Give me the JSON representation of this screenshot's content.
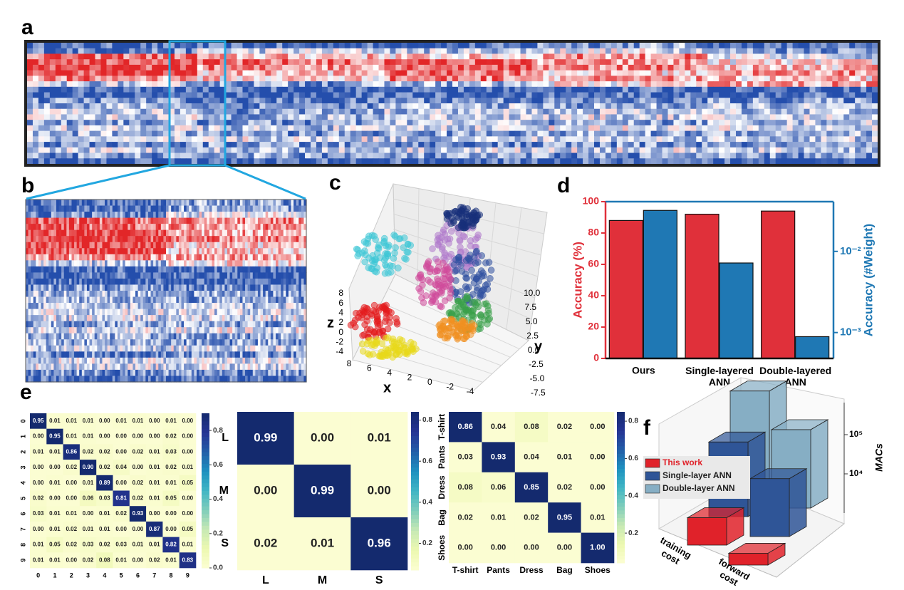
{
  "chart_data": [
    {
      "type": "raster",
      "label": "a"
    },
    {
      "type": "raster",
      "label": "b"
    },
    {
      "type": "scatter3d",
      "label": "c",
      "xlabel": "x",
      "ylabel": "y",
      "zlabel": "z",
      "xlim": [
        -4,
        8
      ],
      "xticks": [
        -4,
        -2,
        0,
        2,
        4,
        6,
        8
      ],
      "ylim": [
        -7.5,
        10
      ],
      "yticks": [
        -7.5,
        {
          "value": -5,
          "label": "-5.0"
        },
        -2.5,
        {
          "value": 0,
          "label": "0.0"
        },
        2.5,
        {
          "value": 5,
          "label": "5.0"
        },
        7.5,
        {
          "value": 10,
          "label": "10.0"
        }
      ],
      "zlim": [
        -4,
        8
      ],
      "zticks": [
        -4,
        -2,
        0,
        2,
        4,
        6,
        8
      ]
    },
    {
      "type": "bar",
      "label": "d",
      "categories": [
        "Ours",
        "Single-layered ANN",
        "Double-layered ANN"
      ],
      "series": [
        {
          "color": "#e0303a",
          "values": [
            88,
            92,
            94
          ]
        },
        {
          "color": "#1f78b4",
          "axis": "y2",
          "values": [
            0.032,
            0.0072,
            0.00089
          ]
        }
      ],
      "ylabel": "Accuracy (%)",
      "y2label": "Accuracy  (#Weight)",
      "ylim": [
        0,
        100
      ],
      "yticks": [
        0,
        20,
        40,
        60,
        80,
        100
      ],
      "y2log": true,
      "y2lim": [
        0.00048,
        0.041
      ],
      "y2ticks": [
        {
          "value": 0.001,
          "label": "10⁻³"
        },
        {
          "value": 0.01,
          "label": "10⁻²"
        }
      ]
    },
    {
      "type": "heatmap",
      "label": "e",
      "categories": [
        "0",
        "1",
        "2",
        "3",
        "4",
        "5",
        "6",
        "7",
        "8",
        "9"
      ],
      "values": [
        [
          0.95,
          0.01,
          0.01,
          0.01,
          0,
          0.01,
          0.01,
          0,
          0.01,
          0
        ],
        [
          0,
          0.95,
          0.01,
          0.01,
          0,
          0,
          0,
          0,
          0.02,
          0
        ],
        [
          0.01,
          0.01,
          0.86,
          0.02,
          0.02,
          0,
          0.02,
          0.01,
          0.03,
          0
        ],
        [
          0,
          0,
          0.02,
          0.9,
          0.02,
          0.04,
          0,
          0.01,
          0.02,
          0.01
        ],
        [
          0,
          0.01,
          0,
          0.01,
          0.89,
          0,
          0.02,
          0.01,
          0.01,
          0.05
        ],
        [
          0.02,
          0,
          0,
          0.06,
          0.03,
          0.81,
          0.02,
          0.01,
          0.05,
          0
        ],
        [
          0.03,
          0.01,
          0.01,
          0,
          0.01,
          0.02,
          0.93,
          0,
          0,
          0
        ],
        [
          0,
          0.01,
          0.02,
          0.01,
          0.01,
          0,
          0,
          0.87,
          0,
          0.05
        ],
        [
          0.01,
          0.05,
          0.02,
          0.03,
          0.02,
          0.03,
          0.01,
          0.01,
          0.82,
          0.01
        ],
        [
          0.01,
          0.01,
          0,
          0.02,
          0.08,
          0.01,
          0,
          0.02,
          0.01,
          0.83
        ]
      ],
      "value_labels": [
        [
          "0.95",
          "0.01",
          "0.01",
          "0.01",
          "0.00",
          "0.01",
          "0.01",
          "0.00",
          "0.01",
          "0.00"
        ],
        [
          "0.00",
          "0.95",
          "0.01",
          "0.01",
          "0.00",
          "0.00",
          "0.00",
          "0.00",
          "0.02",
          "0.00"
        ],
        [
          "0.01",
          "0.01",
          "0.86",
          "0.02",
          "0.02",
          "0.00",
          "0.02",
          "0.01",
          "0.03",
          "0.00"
        ],
        [
          "0.00",
          "0.00",
          "0.02",
          "0.90",
          "0.02",
          "0.04",
          "0.00",
          "0.01",
          "0.02",
          "0.01"
        ],
        [
          "0.00",
          "0.01",
          "0.00",
          "0.01",
          "0.89",
          "0.00",
          "0.02",
          "0.01",
          "0.01",
          "0.05"
        ],
        [
          "0.02",
          "0.00",
          "0.00",
          "0.06",
          "0.03",
          "0.81",
          "0.02",
          "0.01",
          "0.05",
          "0.00"
        ],
        [
          "0.03",
          "0.01",
          "0.01",
          "0.00",
          "0.01",
          "0.02",
          "0.93",
          "0.00",
          "0.00",
          "0.00"
        ],
        [
          "0.00",
          "0.01",
          "0.02",
          "0.01",
          "0.01",
          "0.00",
          "0.00",
          "0.87",
          "0.00",
          "0.05"
        ],
        [
          "0.01",
          "0.05",
          "0.02",
          "0.03",
          "0.02",
          "0.03",
          "0.01",
          "0.01",
          "0.82",
          "0.01"
        ],
        [
          "0.01",
          "0.01",
          "0.00",
          "0.02",
          "0.08",
          "0.01",
          "0.00",
          "0.02",
          "0.01",
          "0.83"
        ]
      ],
      "zlim": [
        0,
        0.9
      ],
      "zticks": [
        {
          "value": 0,
          "label": "0.0"
        },
        0.2,
        0.4,
        0.6,
        0.8
      ]
    },
    {
      "type": "heatmap",
      "categories": [
        "L",
        "M",
        "S"
      ],
      "values": [
        [
          0.99,
          0,
          0.01
        ],
        [
          0,
          0.99,
          0
        ],
        [
          0.02,
          0.01,
          0.96
        ]
      ],
      "value_labels": [
        [
          "0.99",
          "0.00",
          "0.01"
        ],
        [
          "0.00",
          "0.99",
          "0.00"
        ],
        [
          "0.02",
          "0.01",
          "0.96"
        ]
      ],
      "zlim": [
        0.07,
        0.84
      ],
      "zticks": [
        0.2,
        0.4,
        0.6,
        0.8
      ]
    },
    {
      "type": "heatmap",
      "categories": [
        "T-shirt",
        "Pants",
        "Dress",
        "Bag",
        "Shoes"
      ],
      "values": [
        [
          0.86,
          0.04,
          0.08,
          0.02,
          0
        ],
        [
          0.03,
          0.93,
          0.04,
          0.01,
          0
        ],
        [
          0.08,
          0.06,
          0.85,
          0.02,
          0
        ],
        [
          0.02,
          0.01,
          0.02,
          0.95,
          0.01
        ],
        [
          0,
          0,
          0,
          0,
          1
        ]
      ],
      "value_labels": [
        [
          "0.86",
          "0.04",
          "0.08",
          "0.02",
          "0.00"
        ],
        [
          "0.03",
          "0.93",
          "0.04",
          "0.01",
          "0.00"
        ],
        [
          "0.08",
          "0.06",
          "0.85",
          "0.02",
          "0.00"
        ],
        [
          "0.02",
          "0.01",
          "0.02",
          "0.95",
          "0.01"
        ],
        [
          "0.00",
          "0.00",
          "0.00",
          "0.00",
          "1.00"
        ]
      ],
      "zlim": [
        0.04,
        0.85
      ],
      "zticks": [
        0.2,
        0.4,
        0.6,
        0.8
      ]
    },
    {
      "type": "bar3d",
      "label": "f",
      "categories": [
        "training cost",
        "forward cost"
      ],
      "series": [
        {
          "name": "This work",
          "color": "#e0222a",
          "values": [
            5000,
            2000
          ]
        },
        {
          "name": "Single-layer ANN",
          "color": "#2f5597",
          "values": [
            80000,
            30000
          ]
        },
        {
          "name": "Double-layer ANN",
          "color": "#86aec4",
          "values": [
            300000,
            100000
          ]
        }
      ],
      "ylabel": "MACs",
      "log_scale": true,
      "ylim": [
        1000,
        300000
      ],
      "yticks": [
        {
          "value": 10000,
          "label": "10⁴"
        },
        {
          "value": 100000,
          "label": "10⁵"
        }
      ]
    }
  ]
}
